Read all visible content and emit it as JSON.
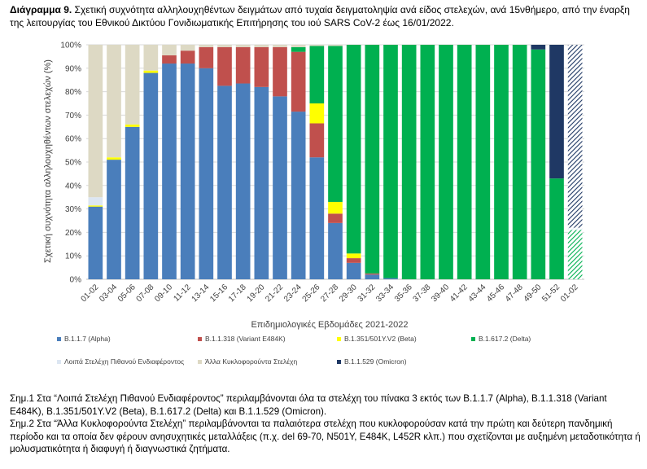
{
  "caption": {
    "label": "Διάγραμμα 9.",
    "text": " Σχετική συχνότητα αλληλουχηθέντων δειγμάτων από τυχαία δειγματοληψία ανά είδος στελεχών, ανά 15νθήμερο, από την έναρξη της λειτουργίας του Εθνικού Δικτύου Γονιδιωματικής Επιτήρησης του ιού SARS CoV-2 έως 16/01/2022."
  },
  "notes": {
    "n1": "Σημ.1 Στα “Λοιπά Στελέχη Πιθανού Ενδιαφέροντος” περιλαμβάνονται όλα τα στελέχη του πίνακα 3 εκτός των B.1.1.7 (Alpha), B.1.1.318 (Variant E484K), B.1.351/501Y.V2 (Beta), B.1.617.2 (Delta) και B.1.1.529 (Omicron).",
    "n2": "Σημ.2 Στα “Άλλα Κυκλοφορούντα Στελέχη” περιλαμβάνονται τα παλαιότερα στελέχη που κυκλοφορούσαν κατά την πρώτη και δεύτερη πανδημική περίοδο και τα οποία δεν φέρουν ανησυχητικές μεταλλάξεις (π.χ. del 69-70, N501Y, E484K, L452R κλπ.) που σχετίζονται με αυξημένη μεταδοτικότητα ή μολυσματικότητα ή διαφυγή ή διαγνωστικά ζητήματα."
  },
  "chart_data": {
    "type": "bar",
    "stacked": true,
    "xlabel": "Επιδημιολογικές Εβδομάδες 2021-2022",
    "ylabel": "Σχετική συχνότητα αλληλουχηθέντων στελεχών (%)",
    "ylim": [
      0,
      100
    ],
    "yticks": [
      "0%",
      "10%",
      "20%",
      "30%",
      "40%",
      "50%",
      "60%",
      "70%",
      "80%",
      "90%",
      "100%"
    ],
    "grid": true,
    "legend_position": "bottom",
    "categories": [
      "01-02",
      "03-04",
      "05-06",
      "07-08",
      "09-10",
      "11-12",
      "13-14",
      "15-16",
      "17-18",
      "19-20",
      "21-22",
      "23-24",
      "25-26",
      "27-28",
      "29-30",
      "31-32",
      "33-34",
      "35-36",
      "37-38",
      "39-40",
      "41-42",
      "43-44",
      "45-46",
      "47-48",
      "49-50",
      "51-52",
      "01-02"
    ],
    "hatched_last_category": true,
    "series": [
      {
        "name": "B.1.1.7 (Alpha)",
        "color": "#4a7ebb",
        "values": [
          31,
          51,
          65,
          88,
          92,
          92,
          90,
          82.5,
          83.5,
          82,
          78,
          71.5,
          52,
          24,
          7,
          2,
          0.5,
          0,
          0,
          0,
          0,
          0,
          0,
          0,
          0,
          0,
          0
        ]
      },
      {
        "name": "B.1.1.318 (Variant E484K)",
        "color": "#c0504d",
        "values": [
          0,
          0,
          0,
          0,
          3.5,
          5.5,
          9,
          16.5,
          15.5,
          17,
          21,
          25.5,
          14.5,
          4,
          2,
          0.5,
          0,
          0,
          0,
          0,
          0,
          0,
          0,
          0,
          0,
          0,
          0
        ]
      },
      {
        "name": "B.1.351/501Y.V2 (Beta)",
        "color": "#ffff00",
        "values": [
          0.5,
          1,
          1,
          1,
          0,
          0,
          0,
          0,
          0,
          0,
          0,
          0,
          8.5,
          5,
          2,
          0,
          0,
          0,
          0,
          0,
          0,
          0,
          0,
          0,
          0,
          0,
          0
        ]
      },
      {
        "name": "B.1.617.2 (Delta)",
        "color": "#00b050",
        "values": [
          0,
          0,
          0,
          0,
          0,
          0,
          0,
          0,
          0,
          0,
          0,
          2,
          24.5,
          66.5,
          89,
          97.5,
          99.5,
          100,
          100,
          100,
          100,
          100,
          100,
          100,
          98,
          43,
          21
        ]
      },
      {
        "name": "Λοιπά Στελέχη Πιθανού Ενδιαφέροντος",
        "color": "#dce6f2",
        "values": [
          3.5,
          0,
          0,
          0,
          0,
          0,
          0,
          0,
          0,
          0,
          0,
          0,
          0,
          0,
          0,
          0,
          0,
          0,
          0,
          0,
          0,
          0,
          0,
          0,
          0,
          0,
          1
        ]
      },
      {
        "name": "Άλλα Κυκλοφορούντα Στελέχη",
        "color": "#ddd9c4",
        "values": [
          65,
          48,
          34,
          11,
          4.5,
          2.5,
          1,
          1,
          1,
          1,
          1,
          1,
          0.5,
          0.5,
          0,
          0,
          0,
          0,
          0,
          0,
          0,
          0,
          0,
          0,
          0,
          0,
          0
        ]
      },
      {
        "name": "B.1.1.529 (Omicron)",
        "color": "#1f3864",
        "values": [
          0,
          0,
          0,
          0,
          0,
          0,
          0,
          0,
          0,
          0,
          0,
          0,
          0,
          0,
          0,
          0,
          0,
          0,
          0,
          0,
          0,
          0,
          0,
          0,
          2,
          57,
          78
        ]
      }
    ]
  }
}
